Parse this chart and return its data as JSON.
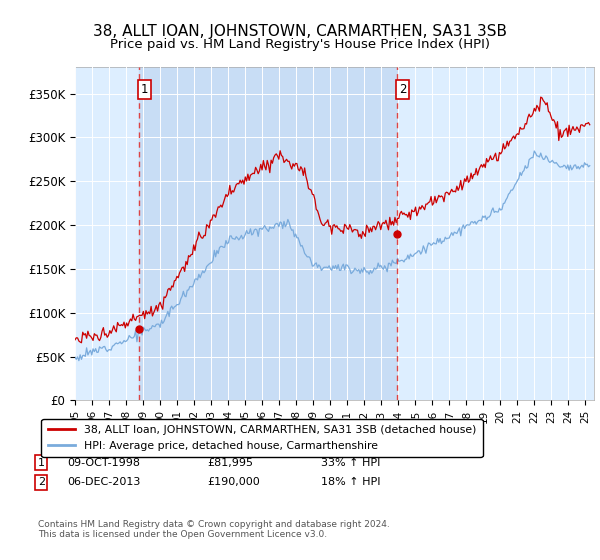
{
  "title": "38, ALLT IOAN, JOHNSTOWN, CARMARTHEN, SA31 3SB",
  "subtitle": "Price paid vs. HM Land Registry's House Price Index (HPI)",
  "ylim": [
    0,
    380000
  ],
  "yticks": [
    0,
    50000,
    100000,
    150000,
    200000,
    250000,
    300000,
    350000
  ],
  "ytick_labels": [
    "£0",
    "£50K",
    "£100K",
    "£150K",
    "£200K",
    "£250K",
    "£300K",
    "£350K"
  ],
  "sale1_date": 1998.78,
  "sale1_price": 81995,
  "sale2_date": 2013.92,
  "sale2_price": 190000,
  "red_line_color": "#cc0000",
  "blue_line_color": "#7aabdc",
  "vline_color": "#dd4444",
  "box_edge_color": "#cc0000",
  "bg_color": "#ddeeff",
  "shade_color": "#c8ddf5",
  "legend_label_red": "38, ALLT Ioan, JOHNSTOWN, CARMARTHEN, SA31 3SB (detached house)",
  "legend_label_blue": "HPI: Average price, detached house, Carmarthenshire",
  "footer": "Contains HM Land Registry data © Crown copyright and database right 2024.\nThis data is licensed under the Open Government Licence v3.0.",
  "title_fontsize": 11,
  "subtitle_fontsize": 9.5
}
